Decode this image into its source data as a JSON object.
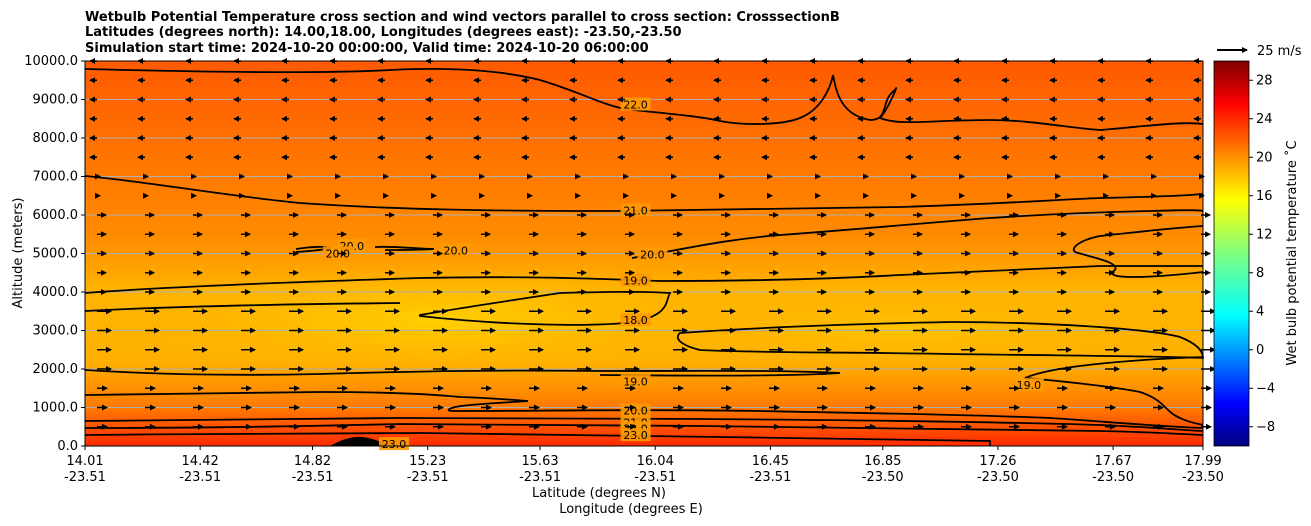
{
  "chart_data": {
    "type": "contour",
    "title_lines": [
      "Wetbulb Potential Temperature cross section and wind vectors parallel to cross section: CrosssectionB",
      "Latitudes (degrees north): 14.00,18.00, Longitudes (degrees east): -23.50,-23.50",
      "Simulation start time: 2024-10-20 00:00:00, Valid time: 2024-10-20 06:00:00"
    ],
    "xlabel_lines": [
      "Latitude (degrees N)",
      "Longitude (degrees E)"
    ],
    "ylabel": "Altitude (meters)",
    "xlim": [
      14.01,
      17.99
    ],
    "ylim": [
      0,
      10000
    ],
    "x_ticks": [
      {
        "lat": "14.01",
        "lon": "-23.51",
        "value": 14.01
      },
      {
        "lat": "14.42",
        "lon": "-23.51",
        "value": 14.42
      },
      {
        "lat": "14.82",
        "lon": "-23.51",
        "value": 14.82
      },
      {
        "lat": "15.23",
        "lon": "-23.51",
        "value": 15.23
      },
      {
        "lat": "15.63",
        "lon": "-23.51",
        "value": 15.63
      },
      {
        "lat": "16.04",
        "lon": "-23.51",
        "value": 16.04
      },
      {
        "lat": "16.45",
        "lon": "-23.51",
        "value": 16.45
      },
      {
        "lat": "16.85",
        "lon": "-23.50",
        "value": 16.85
      },
      {
        "lat": "17.26",
        "lon": "-23.50",
        "value": 17.26
      },
      {
        "lat": "17.67",
        "lon": "-23.50",
        "value": 17.67
      },
      {
        "lat": "17.99",
        "lon": "-23.50",
        "value": 17.99
      }
    ],
    "y_ticks": [
      {
        "label": "0.0",
        "value": 0
      },
      {
        "label": "1000.0",
        "value": 1000
      },
      {
        "label": "2000.0",
        "value": 2000
      },
      {
        "label": "3000.0",
        "value": 3000
      },
      {
        "label": "4000.0",
        "value": 4000
      },
      {
        "label": "5000.0",
        "value": 5000
      },
      {
        "label": "6000.0",
        "value": 6000
      },
      {
        "label": "7000.0",
        "value": 7000
      },
      {
        "label": "8000.0",
        "value": 8000
      },
      {
        "label": "9000.0",
        "value": 9000
      },
      {
        "label": "10000.0",
        "value": 10000
      }
    ],
    "grid": "horizontal",
    "colorbar": {
      "label": "Wet bulb potential temperature ˚C",
      "range": [
        -10,
        30
      ],
      "ticks": [
        "28",
        "24",
        "20",
        "16",
        "12",
        "8",
        "4",
        "0",
        "−4",
        "−8"
      ],
      "tick_values": [
        28,
        24,
        20,
        16,
        12,
        8,
        4,
        0,
        -4,
        -8
      ]
    },
    "quiver_key": {
      "label": "25 m/s",
      "value": 25
    },
    "contour_levels": [
      {
        "level": 18.0,
        "label": "18.0"
      },
      {
        "level": 19.0,
        "label": "19.0"
      },
      {
        "level": 20.0,
        "label": "20.0"
      },
      {
        "level": 21.0,
        "label": "21.0"
      },
      {
        "level": 22.0,
        "label": "22.0"
      },
      {
        "level": 23.0,
        "label": "23.0"
      }
    ],
    "contour_labels": [
      {
        "text": "22.0",
        "lat": 15.97,
        "alt": 8870
      },
      {
        "text": "21.0",
        "lat": 15.97,
        "alt": 6120
      },
      {
        "text": "20.0",
        "lat": 16.03,
        "alt": 4980
      },
      {
        "text": "19.0",
        "lat": 15.97,
        "alt": 4300
      },
      {
        "text": "18.0",
        "lat": 15.97,
        "alt": 3270
      },
      {
        "text": "19.0",
        "lat": 15.97,
        "alt": 1680
      },
      {
        "text": "20.0",
        "lat": 15.97,
        "alt": 920
      },
      {
        "text": "21.0",
        "lat": 15.97,
        "alt": 610
      },
      {
        "text": "22.0",
        "lat": 15.97,
        "alt": 460
      },
      {
        "text": "23.0",
        "lat": 15.97,
        "alt": 280
      },
      {
        "text": "20.0",
        "lat": 14.96,
        "alt": 5200
      },
      {
        "text": "20.0",
        "lat": 14.91,
        "alt": 5000
      },
      {
        "text": "20.0",
        "lat": 15.33,
        "alt": 5080
      },
      {
        "text": "19.0",
        "lat": 17.37,
        "alt": 1580
      },
      {
        "text": "23.0",
        "lat": 15.11,
        "alt": 50
      }
    ]
  },
  "colors": {
    "colormap": [
      "#00007f",
      "#0000ff",
      "#007fff",
      "#00ffff",
      "#7fff7f",
      "#ffff00",
      "#ff7f00",
      "#ff0000",
      "#7f0000"
    ],
    "contour_line": "#000000",
    "grid": "#b0b0b0"
  }
}
